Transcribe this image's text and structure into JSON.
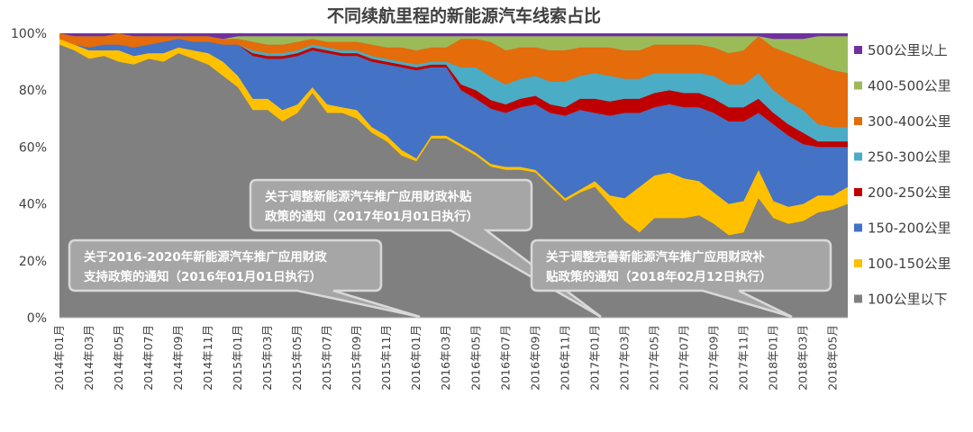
{
  "chart_data": {
    "type": "area",
    "stacked": true,
    "percent": true,
    "title": "不同续航里程的新能源汽车线索占比",
    "xlabel": "",
    "ylabel": "",
    "ylim": [
      0,
      100
    ],
    "y_ticks": [
      "0%",
      "20%",
      "40%",
      "60%",
      "80%",
      "100%"
    ],
    "x_tick_labels": [
      "2014年01月",
      "2014年03月",
      "2014年05月",
      "2014年07月",
      "2014年09月",
      "2014年11月",
      "2015年01月",
      "2015年03月",
      "2015年05月",
      "2015年07月",
      "2015年09月",
      "2015年11月",
      "2016年01月",
      "2016年03月",
      "2016年05月",
      "2016年07月",
      "2016年09月",
      "2016年11月",
      "2017年01月",
      "2017年03月",
      "2017年05月",
      "2017年07月",
      "2017年09月",
      "2017年11月",
      "2018年01月",
      "2018年03月",
      "2018年05月"
    ],
    "x_labels_every": 2,
    "legend_position": "right",
    "grid": false,
    "colors": {
      "plot_bg": "#808080",
      "series_top": "#7030A0",
      "callout_fill": "#A6A6A6",
      "callout_border": "#D9D9D9"
    },
    "series": [
      {
        "name": "100公里以下",
        "color": "#808080",
        "values": [
          96,
          94,
          91,
          92,
          90,
          89,
          91,
          90,
          93,
          91,
          89,
          85,
          81,
          73,
          73,
          69,
          72,
          79,
          72,
          72,
          70,
          65,
          62,
          57,
          55,
          63,
          63,
          60,
          57,
          52,
          52,
          52,
          51,
          46,
          41,
          44,
          46,
          40,
          34,
          30,
          35,
          35,
          35,
          36,
          33,
          29,
          30,
          42,
          35,
          33,
          34,
          37,
          38,
          40
        ]
      },
      {
        "name": "100-150公里",
        "color": "#FFC000",
        "values": [
          2,
          2,
          3,
          2,
          4,
          3,
          2,
          3,
          2,
          3,
          4,
          5,
          4,
          4,
          4,
          4,
          3,
          2,
          3,
          2,
          3,
          2,
          2,
          2,
          1,
          1,
          1,
          1,
          1,
          1,
          1,
          1,
          1,
          1,
          1,
          1,
          2,
          3,
          8,
          16,
          15,
          16,
          14,
          12,
          11,
          11,
          11,
          10,
          6,
          6,
          6,
          6,
          5,
          6
        ]
      },
      {
        "name": "150-200公里",
        "color": "#4472C4",
        "values": [
          0,
          0,
          1,
          2,
          2,
          3,
          3,
          4,
          3,
          3,
          4,
          6,
          11,
          15,
          14,
          18,
          17,
          13,
          18,
          18,
          19,
          23,
          25,
          29,
          31,
          24,
          24,
          19,
          19,
          19,
          19,
          21,
          23,
          25,
          29,
          28,
          24,
          28,
          30,
          26,
          24,
          24,
          25,
          26,
          28,
          29,
          28,
          20,
          27,
          25,
          21,
          17,
          17,
          14
        ]
      },
      {
        "name": "200-250公里",
        "color": "#C00000",
        "values": [
          0,
          0,
          0,
          0,
          0,
          0,
          0,
          0,
          0,
          0,
          0,
          0,
          0,
          1,
          1,
          1,
          1,
          1,
          1,
          1,
          1,
          1,
          1,
          1,
          1,
          1,
          1,
          2,
          3,
          3,
          3,
          3,
          3,
          3,
          3,
          4,
          5,
          5,
          5,
          5,
          5,
          5,
          5,
          5,
          5,
          5,
          5,
          5,
          4,
          4,
          4,
          2,
          2,
          2
        ]
      },
      {
        "name": "250-300公里",
        "color": "#4BACC6",
        "values": [
          0,
          0,
          0,
          0,
          0,
          0,
          0,
          0,
          0,
          0,
          0,
          0,
          0,
          1,
          1,
          1,
          1,
          1,
          1,
          1,
          1,
          1,
          1,
          1,
          1,
          1,
          1,
          6,
          8,
          8,
          7,
          7,
          7,
          8,
          9,
          8,
          9,
          9,
          7,
          7,
          7,
          6,
          7,
          7,
          8,
          8,
          8,
          9,
          8,
          8,
          8,
          6,
          5,
          5
        ]
      },
      {
        "name": "300-400公里",
        "color": "#E46C0A",
        "values": [
          2,
          3,
          4,
          3,
          4,
          4,
          3,
          2,
          1,
          2,
          2,
          2,
          2,
          3,
          3,
          3,
          3,
          2,
          2,
          3,
          3,
          4,
          4,
          5,
          5,
          5,
          5,
          10,
          10,
          12,
          12,
          11,
          10,
          11,
          11,
          10,
          9,
          10,
          10,
          10,
          10,
          10,
          10,
          10,
          10,
          11,
          12,
          13,
          15,
          17,
          18,
          21,
          20,
          19
        ]
      },
      {
        "name": "400-500公里",
        "color": "#9BBB59",
        "values": [
          0,
          0,
          0,
          0,
          0,
          0,
          0,
          0,
          0,
          0,
          0,
          0,
          1,
          2,
          3,
          3,
          2,
          1,
          2,
          2,
          2,
          3,
          4,
          4,
          5,
          4,
          4,
          1,
          1,
          2,
          5,
          4,
          4,
          5,
          5,
          4,
          4,
          4,
          5,
          5,
          3,
          3,
          3,
          3,
          4,
          6,
          5,
          0,
          3,
          5,
          7,
          10,
          12,
          13
        ]
      },
      {
        "name": "500公里以上",
        "color": "#7030A0",
        "values": [
          0,
          1,
          1,
          1,
          0,
          1,
          1,
          1,
          1,
          1,
          1,
          2,
          1,
          1,
          1,
          1,
          1,
          1,
          1,
          1,
          1,
          1,
          1,
          1,
          1,
          1,
          1,
          1,
          1,
          1,
          1,
          1,
          1,
          1,
          1,
          1,
          1,
          1,
          1,
          1,
          1,
          1,
          1,
          1,
          1,
          1,
          1,
          1,
          2,
          2,
          2,
          1,
          1,
          1
        ]
      }
    ],
    "annotations": [
      {
        "text_line1": "关于2016-2020年新能源汽车推广应用财政",
        "text_line2": "支持政策的通知（2016年01月01日执行）",
        "points_to": "2016年01月"
      },
      {
        "text_line1": "关于调整新能源汽车推广应用财政补贴",
        "text_line2": "政策的通知（2017年01月01日执行）",
        "points_to": "2017年01月"
      },
      {
        "text_line1": "关于调整完善新能源汽车推广应用财政补",
        "text_line2": "贴政策的通知（2018年02月12日执行）",
        "points_to": "2018年02月"
      }
    ]
  }
}
